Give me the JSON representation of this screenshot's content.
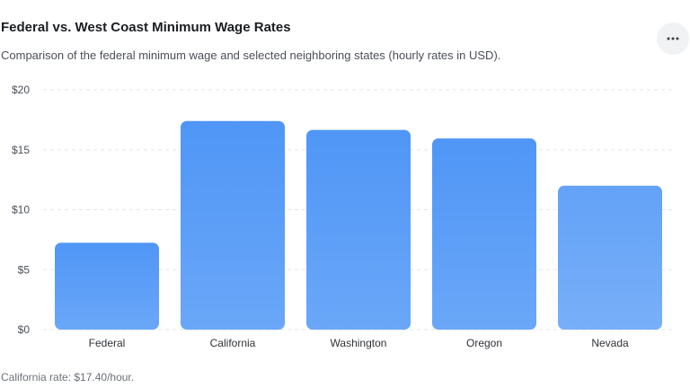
{
  "header": {
    "title": "Federal vs. West Coast Minimum Wage Rates",
    "subtitle": "Comparison of the federal minimum wage and selected neighboring states (hourly rates in USD).",
    "menu_icon": "more-horizontal-icon"
  },
  "footer": {
    "note": "California rate: $17.40/hour."
  },
  "colors": {
    "bar_top": "#4f96f6",
    "bar_bottom": "#6aa7f8",
    "nevada_top": "#63a2f7",
    "nevada_bottom": "#78aff9",
    "gridline": "#e3e5e8"
  },
  "chart_data": {
    "type": "bar",
    "title": "Federal vs. West Coast Minimum Wage Rates",
    "xlabel": "",
    "ylabel": "",
    "categories": [
      "Federal",
      "California",
      "Washington",
      "Oregon",
      "Nevada"
    ],
    "values": [
      7.25,
      17.4,
      16.66,
      15.95,
      12.0
    ],
    "ylim": [
      0,
      20
    ],
    "yticks": [
      0,
      5,
      10,
      15,
      20
    ],
    "ytick_labels": [
      "$0",
      "$5",
      "$10",
      "$15",
      "$20"
    ],
    "grid": true,
    "legend": "none"
  }
}
